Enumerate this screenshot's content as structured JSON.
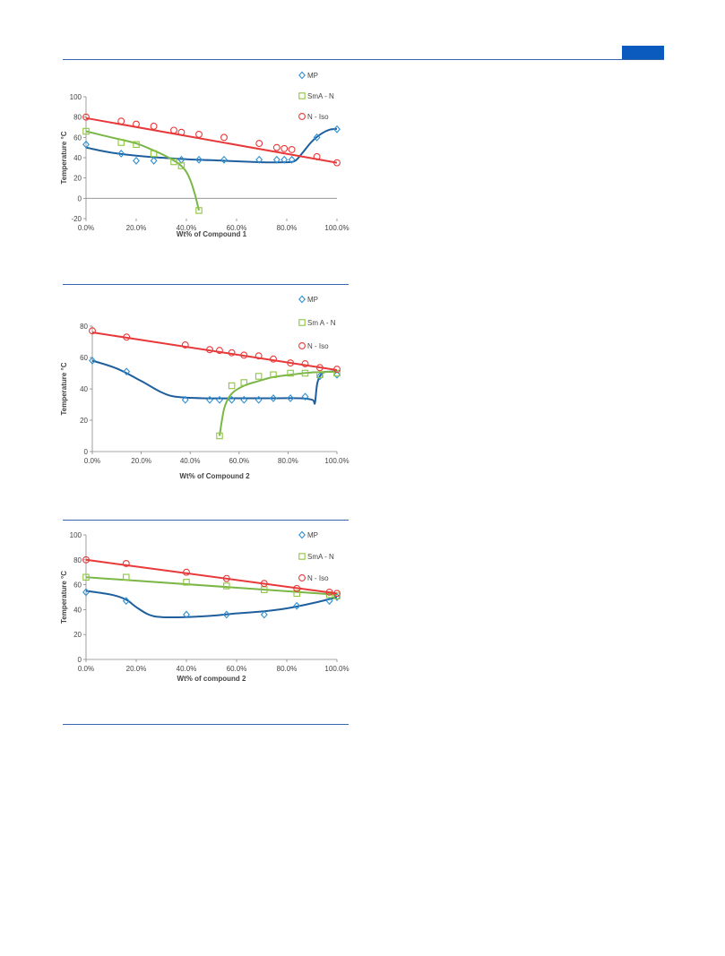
{
  "page": {
    "accent_color": "#0b5bbf"
  },
  "chart_data": [
    {
      "type": "scatter",
      "title": "",
      "xlabel": "Wt% of Compound 1",
      "ylabel": "Temperature °C",
      "xlim": [
        0,
        1
      ],
      "ylim": [
        -20,
        100
      ],
      "x_tick_labels": [
        "0.0%",
        "20.0%",
        "40.0%",
        "60.0%",
        "80.0%",
        "100.0%"
      ],
      "y_tick_labels": [
        "-20",
        "0",
        "20",
        "40",
        "60",
        "80",
        "100"
      ],
      "grid": false,
      "legend_position": "top-right",
      "series": [
        {
          "name": "MP",
          "marker": "diamond",
          "color": "#2f8fd0",
          "line_color": "#1f5f9e",
          "points": [
            [
              0.0,
              53
            ],
            [
              0.14,
              44
            ],
            [
              0.2,
              37
            ],
            [
              0.27,
              37
            ],
            [
              0.38,
              38
            ],
            [
              0.45,
              38
            ],
            [
              0.55,
              38
            ],
            [
              0.69,
              38
            ],
            [
              0.76,
              38
            ],
            [
              0.79,
              38
            ],
            [
              0.82,
              38
            ],
            [
              0.92,
              60
            ],
            [
              1.0,
              68
            ]
          ],
          "curve": [
            [
              0.0,
              50
            ],
            [
              0.1,
              45
            ],
            [
              0.2,
              42
            ],
            [
              0.3,
              40
            ],
            [
              0.4,
              38.5
            ],
            [
              0.5,
              37.5
            ],
            [
              0.6,
              36.5
            ],
            [
              0.7,
              35.5
            ],
            [
              0.78,
              35.5
            ],
            [
              0.83,
              36.5
            ],
            [
              0.86,
              44
            ],
            [
              0.9,
              56
            ],
            [
              0.94,
              64
            ],
            [
              0.97,
              67.5
            ],
            [
              1.0,
              68.5
            ]
          ]
        },
        {
          "name": "SmA - N",
          "marker": "square",
          "color": "#8dc63f",
          "line_color": "#7ab648",
          "points": [
            [
              0.0,
              66
            ],
            [
              0.14,
              55
            ],
            [
              0.2,
              53
            ],
            [
              0.27,
              44
            ],
            [
              0.35,
              36
            ],
            [
              0.38,
              32
            ],
            [
              0.45,
              -12
            ]
          ],
          "curve": [
            [
              0.0,
              66
            ],
            [
              0.1,
              60
            ],
            [
              0.2,
              54
            ],
            [
              0.28,
              46
            ],
            [
              0.33,
              40
            ],
            [
              0.37,
              34
            ],
            [
              0.4,
              26
            ],
            [
              0.42,
              15
            ],
            [
              0.435,
              3
            ],
            [
              0.445,
              -7
            ],
            [
              0.45,
              -12
            ]
          ]
        },
        {
          "name": "N - Iso",
          "marker": "circle",
          "color": "#e8393a",
          "line_color": "#e8393a",
          "points": [
            [
              0.0,
              80
            ],
            [
              0.14,
              76
            ],
            [
              0.2,
              73
            ],
            [
              0.27,
              71
            ],
            [
              0.35,
              67
            ],
            [
              0.38,
              65
            ],
            [
              0.45,
              63
            ],
            [
              0.55,
              60
            ],
            [
              0.69,
              54
            ],
            [
              0.76,
              50
            ],
            [
              0.79,
              49
            ],
            [
              0.82,
              48
            ],
            [
              0.92,
              41
            ],
            [
              1.0,
              35
            ]
          ],
          "curve": [
            [
              0.0,
              79
            ],
            [
              1.0,
              35
            ]
          ]
        }
      ]
    },
    {
      "type": "scatter",
      "title": "",
      "xlabel": "Wt% of Compound 2",
      "ylabel": "Temperature °C",
      "xlim": [
        0,
        1
      ],
      "ylim": [
        0,
        80
      ],
      "x_tick_labels": [
        "0.0%",
        "20.0%",
        "40.0%",
        "60.0%",
        "80.0%",
        "100.0%"
      ],
      "y_tick_labels": [
        "0",
        "20",
        "40",
        "60",
        "80"
      ],
      "grid": false,
      "legend_position": "top-right",
      "series": [
        {
          "name": "MP",
          "marker": "diamond",
          "color": "#2f8fd0",
          "line_color": "#1f5f9e",
          "points": [
            [
              0.0,
              58
            ],
            [
              0.14,
              51
            ],
            [
              0.38,
              33
            ],
            [
              0.48,
              33
            ],
            [
              0.52,
              33
            ],
            [
              0.57,
              33
            ],
            [
              0.62,
              33
            ],
            [
              0.68,
              33
            ],
            [
              0.74,
              34
            ],
            [
              0.81,
              34
            ],
            [
              0.87,
              35
            ],
            [
              0.93,
              48
            ],
            [
              1.0,
              49
            ]
          ],
          "curve": [
            [
              0.0,
              58
            ],
            [
              0.1,
              53
            ],
            [
              0.2,
              45
            ],
            [
              0.28,
              38
            ],
            [
              0.34,
              35
            ],
            [
              0.45,
              34
            ],
            [
              0.6,
              34
            ],
            [
              0.75,
              34
            ],
            [
              0.85,
              34
            ],
            [
              0.9,
              33
            ],
            [
              0.91,
              31
            ],
            [
              0.92,
              44
            ],
            [
              0.94,
              50
            ],
            [
              0.97,
              51
            ],
            [
              1.0,
              51
            ]
          ]
        },
        {
          "name": "Sm A - N",
          "marker": "square",
          "color": "#8dc63f",
          "line_color": "#7ab648",
          "points": [
            [
              0.52,
              10
            ],
            [
              0.57,
              42
            ],
            [
              0.62,
              44
            ],
            [
              0.68,
              48
            ],
            [
              0.74,
              49
            ],
            [
              0.81,
              50
            ],
            [
              0.87,
              50
            ],
            [
              0.93,
              49
            ],
            [
              1.0,
              50
            ]
          ],
          "curve": [
            [
              0.52,
              10
            ],
            [
              0.54,
              28
            ],
            [
              0.57,
              37
            ],
            [
              0.62,
              42
            ],
            [
              0.68,
              45
            ],
            [
              0.74,
              47.5
            ],
            [
              0.81,
              49
            ],
            [
              0.9,
              50.5
            ],
            [
              1.0,
              51
            ]
          ]
        },
        {
          "name": "N - Iso",
          "marker": "circle",
          "color": "#e8393a",
          "line_color": "#e8393a",
          "points": [
            [
              0.0,
              77
            ],
            [
              0.14,
              73
            ],
            [
              0.38,
              68
            ],
            [
              0.48,
              65
            ],
            [
              0.52,
              64.5
            ],
            [
              0.57,
              63
            ],
            [
              0.62,
              61.5
            ],
            [
              0.68,
              61
            ],
            [
              0.74,
              59
            ],
            [
              0.81,
              56.5
            ],
            [
              0.87,
              56
            ],
            [
              0.93,
              53.5
            ],
            [
              1.0,
              52.5
            ]
          ],
          "curve": [
            [
              0.0,
              76
            ],
            [
              1.0,
              52
            ]
          ]
        }
      ]
    },
    {
      "type": "scatter",
      "title": "",
      "xlabel": "Wt% of compound 2",
      "ylabel": "Temperature °C",
      "xlim": [
        0,
        1
      ],
      "ylim": [
        0,
        100
      ],
      "x_tick_labels": [
        "0.0%",
        "20.0%",
        "40.0%",
        "60.0%",
        "80.0%",
        "100.0%"
      ],
      "y_tick_labels": [
        "0",
        "20",
        "40",
        "60",
        "80",
        "100"
      ],
      "grid": false,
      "legend_position": "top-right",
      "series": [
        {
          "name": "MP",
          "marker": "diamond",
          "color": "#2f8fd0",
          "line_color": "#1f5f9e",
          "points": [
            [
              0.0,
              54
            ],
            [
              0.16,
              47
            ],
            [
              0.4,
              36
            ],
            [
              0.56,
              36
            ],
            [
              0.71,
              36
            ],
            [
              0.84,
              43
            ],
            [
              0.97,
              47
            ],
            [
              1.0,
              50
            ]
          ],
          "curve": [
            [
              0.0,
              55
            ],
            [
              0.1,
              52
            ],
            [
              0.16,
              48
            ],
            [
              0.2,
              42
            ],
            [
              0.25,
              36
            ],
            [
              0.3,
              34
            ],
            [
              0.4,
              34
            ],
            [
              0.5,
              35
            ],
            [
              0.6,
              37
            ],
            [
              0.7,
              38.5
            ],
            [
              0.8,
              41
            ],
            [
              0.9,
              45
            ],
            [
              1.0,
              50
            ]
          ]
        },
        {
          "name": "SmA - N",
          "marker": "square",
          "color": "#8dc63f",
          "line_color": "#7ab648",
          "points": [
            [
              0.0,
              66
            ],
            [
              0.16,
              66
            ],
            [
              0.4,
              62
            ],
            [
              0.56,
              59
            ],
            [
              0.71,
              56
            ],
            [
              0.84,
              53
            ],
            [
              0.97,
              52
            ],
            [
              1.0,
              51
            ]
          ],
          "curve": [
            [
              0.0,
              66
            ],
            [
              1.0,
              52
            ]
          ]
        },
        {
          "name": "N - Iso",
          "marker": "circle",
          "color": "#e8393a",
          "line_color": "#e8393a",
          "points": [
            [
              0.0,
              80
            ],
            [
              0.16,
              77
            ],
            [
              0.4,
              70
            ],
            [
              0.56,
              65
            ],
            [
              0.71,
              61
            ],
            [
              0.84,
              57
            ],
            [
              0.97,
              54
            ],
            [
              1.0,
              53
            ]
          ],
          "curve": [
            [
              0.0,
              80
            ],
            [
              1.0,
              53
            ]
          ]
        }
      ]
    }
  ]
}
